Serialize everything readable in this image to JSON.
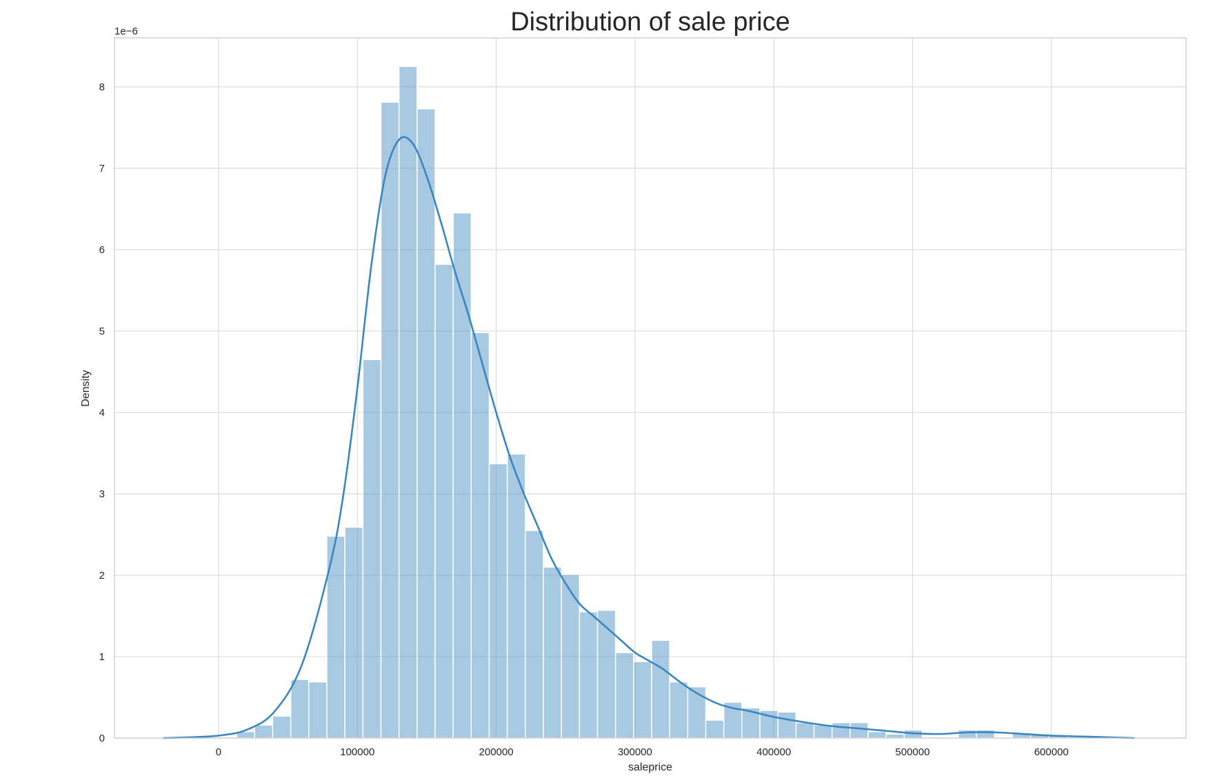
{
  "chart_data": {
    "type": "bar",
    "title": "Distribution of sale price",
    "xlabel": "saleprice",
    "ylabel": "Density",
    "y_scale_label": "1e−6",
    "xlim": [
      -75000,
      697000
    ],
    "ylim": [
      0,
      8.6
    ],
    "x_ticks": [
      0,
      100000,
      200000,
      300000,
      400000,
      500000,
      600000
    ],
    "y_ticks": [
      0,
      1,
      2,
      3,
      4,
      5,
      6,
      7,
      8
    ],
    "grid": true,
    "bar_color": "#5e9cc9",
    "line_color": "#3a86c0",
    "bin_edges": [
      13000,
      26000,
      39000,
      52000,
      65000,
      78000,
      91000,
      104000,
      117000,
      130000,
      143000,
      156000,
      169000,
      182000,
      195000,
      208000,
      221000,
      234000,
      247000,
      260000,
      273000,
      286000,
      299000,
      312000,
      325000,
      338000,
      351000,
      364000,
      377000,
      390000,
      403000,
      416000,
      429000,
      442000,
      455000,
      468000,
      481000,
      494000,
      507000,
      520000,
      533000,
      546000,
      559000,
      572000,
      585000,
      598000,
      611000
    ],
    "series": [
      {
        "name": "",
        "type": "histogram",
        "values": [
          0.08,
          0.16,
          0.27,
          0.72,
          0.69,
          2.48,
          2.59,
          4.65,
          7.81,
          8.25,
          7.73,
          5.82,
          6.45,
          4.98,
          3.37,
          3.49,
          2.55,
          2.1,
          2.01,
          1.55,
          1.57,
          1.05,
          0.94,
          1.2,
          0.69,
          0.63,
          0.22,
          0.44,
          0.37,
          0.34,
          0.32,
          0.19,
          0.16,
          0.19,
          0.19,
          0.08,
          0.05,
          0.1,
          0.0,
          0.0,
          0.1,
          0.1,
          0.0,
          0.06,
          0.05,
          0.03
        ]
      },
      {
        "name": "",
        "type": "kde",
        "x": [
          -40000,
          -20000,
          0,
          20000,
          40000,
          60000,
          80000,
          90000,
          100000,
          110000,
          120000,
          130000,
          140000,
          150000,
          160000,
          170000,
          180000,
          190000,
          200000,
          210000,
          220000,
          230000,
          240000,
          250000,
          260000,
          270000,
          280000,
          290000,
          300000,
          310000,
          320000,
          330000,
          340000,
          350000,
          360000,
          370000,
          380000,
          390000,
          400000,
          420000,
          440000,
          460000,
          480000,
          500000,
          520000,
          540000,
          560000,
          580000,
          600000,
          620000,
          640000,
          660000
        ],
        "y": [
          0.0,
          0.01,
          0.03,
          0.1,
          0.32,
          0.9,
          2.1,
          3.0,
          4.3,
          5.8,
          6.9,
          7.35,
          7.3,
          6.9,
          6.35,
          5.75,
          5.2,
          4.6,
          4.0,
          3.45,
          3.0,
          2.6,
          2.2,
          1.9,
          1.65,
          1.5,
          1.35,
          1.2,
          1.05,
          0.95,
          0.85,
          0.72,
          0.6,
          0.5,
          0.42,
          0.37,
          0.34,
          0.3,
          0.26,
          0.2,
          0.15,
          0.12,
          0.09,
          0.06,
          0.05,
          0.07,
          0.07,
          0.05,
          0.03,
          0.02,
          0.01,
          0.0
        ]
      }
    ]
  }
}
